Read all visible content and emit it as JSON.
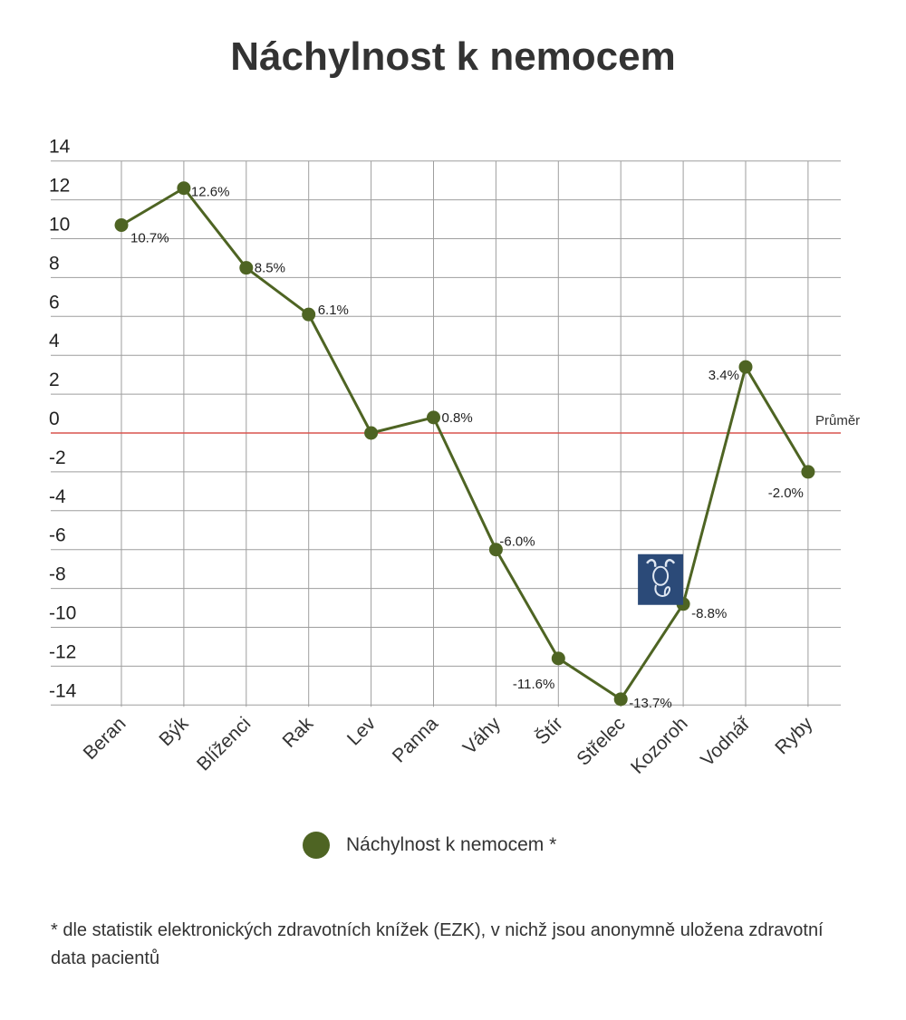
{
  "chart_data": {
    "type": "line",
    "title": "Náchylnost k nemocem",
    "categories": [
      "Beran",
      "Býk",
      "Blíženci",
      "Rak",
      "Lev",
      "Panna",
      "Váhy",
      "Štír",
      "Střelec",
      "Kozoroh",
      "Vodnář",
      "Ryby"
    ],
    "series": [
      {
        "name": "Náchylnost k nemocem *",
        "values": [
          10.7,
          12.6,
          8.5,
          6.1,
          0,
          0.8,
          -6.0,
          -11.6,
          -13.7,
          -8.8,
          3.4,
          -2.0
        ],
        "labels": [
          "10.7%",
          "12.6%",
          "8.5%",
          "6.1%",
          "",
          "0.8%",
          "-6.0%",
          "-11.6%",
          "-13.7%",
          "-8.8%",
          "3.4%",
          "-2.0%"
        ],
        "color": "#4e6423"
      }
    ],
    "yticks": [
      14,
      12,
      10,
      8,
      6,
      4,
      2,
      0,
      -2,
      -4,
      -6,
      -8,
      -10,
      -12,
      -14
    ],
    "ylim": [
      -14,
      14
    ],
    "reference_line": {
      "value": 0,
      "label": "Průměr",
      "color": "#d9534f"
    },
    "grid": true,
    "legend": "bottom"
  },
  "legend": {
    "label": "Náchylnost k nemocem *"
  },
  "footnote": "* dle statistik elektronických zdravotních knížek (EZK), v nichž jsou anonymně uložena zdravotní data pacientů",
  "icons": {
    "capricorn_badge": "capricorn-icon"
  },
  "colors": {
    "line": "#4e6423",
    "reference": "#d9534f",
    "grid": "#9e9e9e",
    "badge_bg": "#2b4a78"
  }
}
